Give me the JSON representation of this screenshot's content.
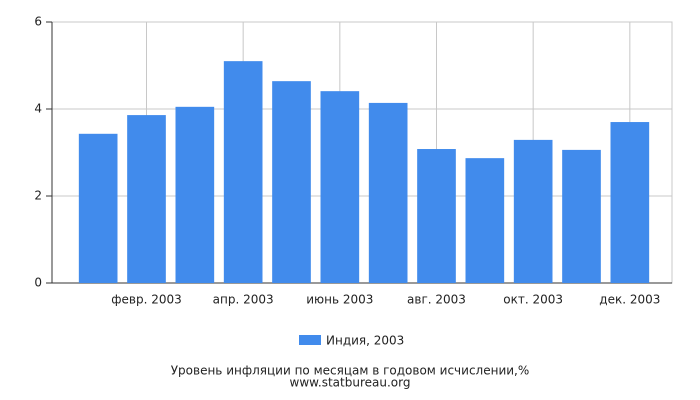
{
  "chart_data": {
    "type": "bar",
    "title": "Уровень инфляции по месяцам в годовом исчислении,%",
    "source": "www.statbureau.org",
    "categories": [
      null,
      "февр. 2003",
      null,
      "апр. 2003",
      null,
      "июнь 2003",
      null,
      "авг. 2003",
      null,
      "окт. 2003",
      null,
      "дек. 2003"
    ],
    "series": [
      {
        "name": "Индия, 2003",
        "color": "#418bec",
        "values": [
          3.43,
          3.86,
          4.05,
          5.1,
          4.64,
          4.41,
          4.14,
          3.08,
          2.87,
          3.29,
          3.06,
          3.7
        ]
      }
    ],
    "ylim": [
      0,
      6
    ],
    "yticks": [
      0,
      2,
      4,
      6
    ],
    "grid": true
  }
}
